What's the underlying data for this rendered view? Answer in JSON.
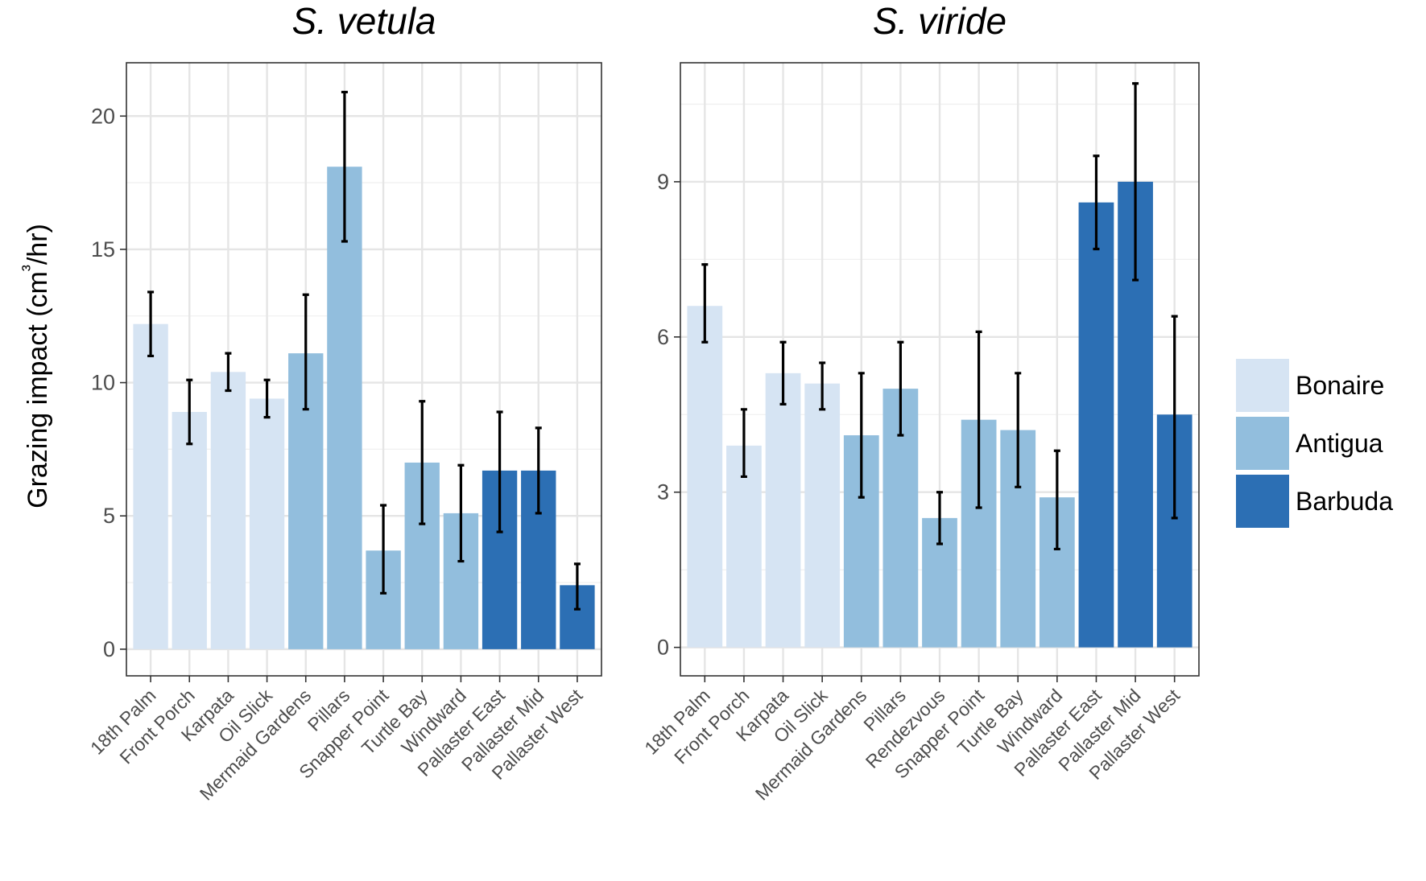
{
  "y_axis_label": "Grazing impact (cm³/hr)",
  "legend": {
    "items": [
      {
        "label": "Bonaire",
        "color": "#d6e4f3"
      },
      {
        "label": "Antigua",
        "color": "#92bedd"
      },
      {
        "label": "Barbuda",
        "color": "#2c6fb4"
      }
    ]
  },
  "chart_data": [
    {
      "type": "bar",
      "title": "S. vetula",
      "ylabel": "Grazing impact (cm³/hr)",
      "ylim": [
        -1,
        22
      ],
      "yticks": [
        0,
        5,
        10,
        15,
        20
      ],
      "categories": [
        "18th Palm",
        "Front Porch",
        "Karpata",
        "Oil Slick",
        "Mermaid Gardens",
        "Pillars",
        "Snapper Point",
        "Turtle Bay",
        "Windward",
        "Pallaster East",
        "Pallaster Mid",
        "Pallaster West"
      ],
      "groups": [
        "Bonaire",
        "Bonaire",
        "Bonaire",
        "Bonaire",
        "Antigua",
        "Antigua",
        "Antigua",
        "Antigua",
        "Antigua",
        "Barbuda",
        "Barbuda",
        "Barbuda"
      ],
      "values": [
        12.2,
        8.9,
        10.4,
        9.4,
        11.1,
        18.1,
        3.7,
        7.0,
        5.1,
        6.7,
        6.7,
        2.4
      ],
      "error_low": [
        11.0,
        7.7,
        9.7,
        8.7,
        9.0,
        15.3,
        2.1,
        4.7,
        3.3,
        4.4,
        5.1,
        1.5
      ],
      "error_high": [
        13.4,
        10.1,
        11.1,
        10.1,
        13.3,
        20.9,
        5.4,
        9.3,
        6.9,
        8.9,
        8.3,
        3.2
      ],
      "grid": true
    },
    {
      "type": "bar",
      "title": "S. viride",
      "ylim": [
        -0.55,
        11.3
      ],
      "yticks": [
        0,
        3,
        6,
        9
      ],
      "categories": [
        "18th Palm",
        "Front Porch",
        "Karpata",
        "Oil Slick",
        "Mermaid Gardens",
        "Pillars",
        "Rendezvous",
        "Snapper Point",
        "Turtle Bay",
        "Windward",
        "Pallaster East",
        "Pallaster Mid",
        "Pallaster West"
      ],
      "groups": [
        "Bonaire",
        "Bonaire",
        "Bonaire",
        "Bonaire",
        "Antigua",
        "Antigua",
        "Antigua",
        "Antigua",
        "Antigua",
        "Antigua",
        "Barbuda",
        "Barbuda",
        "Barbuda"
      ],
      "values": [
        6.6,
        3.9,
        5.3,
        5.1,
        4.1,
        5.0,
        2.5,
        4.4,
        4.2,
        2.9,
        8.6,
        9.0,
        4.5
      ],
      "error_low": [
        5.9,
        3.3,
        4.7,
        4.6,
        2.9,
        4.1,
        2.0,
        2.7,
        3.1,
        1.9,
        7.7,
        7.1,
        2.5
      ],
      "error_high": [
        7.4,
        4.6,
        5.9,
        5.5,
        5.3,
        5.9,
        3.0,
        6.1,
        5.3,
        3.8,
        9.5,
        10.9,
        6.4
      ],
      "grid": true
    }
  ]
}
